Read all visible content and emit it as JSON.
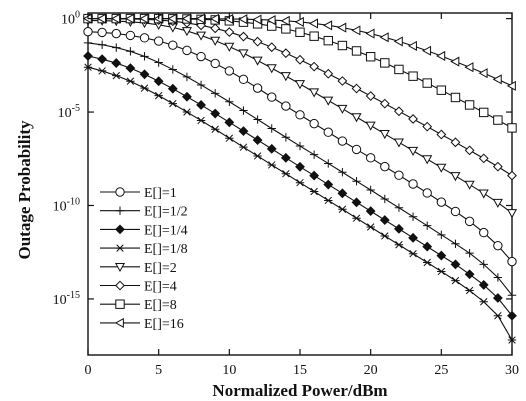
{
  "chart_data": {
    "type": "line",
    "title": "",
    "xlabel": "Normalized Power/dBm",
    "ylabel": "Outage Probability",
    "xlim": [
      0,
      30
    ],
    "ylim_log10": [
      -18,
      0.3
    ],
    "y_scale": "log",
    "x_ticks": [
      0,
      5,
      10,
      15,
      20,
      25,
      30
    ],
    "y_ticks": [
      {
        "exp": 0,
        "base": "10",
        "power": "0"
      },
      {
        "exp": -5,
        "base": "10",
        "power": "-5"
      },
      {
        "exp": -10,
        "base": "10",
        "power": "-10"
      },
      {
        "exp": -15,
        "base": "10",
        "power": "-15"
      }
    ],
    "legend_position": "bottom-left",
    "grid": false,
    "x": [
      0,
      1,
      2,
      3,
      4,
      5,
      6,
      7,
      8,
      9,
      10,
      11,
      12,
      13,
      14,
      15,
      16,
      17,
      18,
      19,
      20,
      21,
      22,
      23,
      24,
      25,
      26,
      27,
      28,
      29,
      30
    ],
    "series": [
      {
        "name": "E[]=1",
        "marker": "circle",
        "log10_y": [
          -0.7,
          -0.74,
          -0.8,
          -0.9,
          -1.03,
          -1.2,
          -1.42,
          -1.7,
          -2.03,
          -2.4,
          -2.8,
          -3.25,
          -3.72,
          -4.2,
          -4.68,
          -5.15,
          -5.62,
          -6.08,
          -6.55,
          -7.0,
          -7.45,
          -7.92,
          -8.38,
          -8.85,
          -9.33,
          -9.82,
          -10.32,
          -10.85,
          -11.45,
          -12.15,
          -13.0
        ]
      },
      {
        "name": "E[]=1/2",
        "marker": "plus",
        "log10_y": [
          -1.3,
          -1.4,
          -1.55,
          -1.75,
          -2.02,
          -2.35,
          -2.72,
          -3.12,
          -3.55,
          -4.0,
          -4.45,
          -4.92,
          -5.4,
          -5.88,
          -6.35,
          -6.82,
          -7.28,
          -7.75,
          -8.22,
          -8.7,
          -9.17,
          -9.65,
          -10.12,
          -10.6,
          -11.08,
          -11.57,
          -12.05,
          -12.55,
          -13.15,
          -13.85,
          -14.8
        ]
      },
      {
        "name": "E[]=1/4",
        "marker": "diamond-filled",
        "log10_y": [
          -2.0,
          -2.17,
          -2.38,
          -2.65,
          -2.98,
          -3.35,
          -3.75,
          -4.18,
          -4.62,
          -5.08,
          -5.55,
          -6.02,
          -6.5,
          -6.97,
          -7.45,
          -7.93,
          -8.4,
          -8.88,
          -9.35,
          -9.83,
          -10.3,
          -10.78,
          -11.25,
          -11.73,
          -12.2,
          -12.68,
          -13.15,
          -13.68,
          -14.25,
          -14.95,
          -15.9
        ]
      },
      {
        "name": "E[]=1/8",
        "marker": "star",
        "log10_y": [
          -2.6,
          -2.8,
          -3.05,
          -3.35,
          -3.72,
          -4.12,
          -4.55,
          -5.0,
          -5.45,
          -5.92,
          -6.4,
          -6.88,
          -7.35,
          -7.83,
          -8.3,
          -8.78,
          -9.25,
          -9.73,
          -10.2,
          -10.68,
          -11.15,
          -11.63,
          -12.1,
          -12.58,
          -13.05,
          -13.53,
          -14.02,
          -14.55,
          -15.15,
          -15.9,
          -17.2
        ]
      },
      {
        "name": "E[]=2",
        "marker": "triangle-down",
        "log10_y": [
          -0.1,
          -0.11,
          -0.13,
          -0.17,
          -0.23,
          -0.33,
          -0.47,
          -0.66,
          -0.9,
          -1.18,
          -1.5,
          -1.85,
          -2.24,
          -2.65,
          -3.07,
          -3.5,
          -3.94,
          -4.38,
          -4.82,
          -5.27,
          -5.72,
          -6.17,
          -6.62,
          -7.07,
          -7.52,
          -7.97,
          -8.42,
          -8.88,
          -9.35,
          -9.85,
          -10.4
        ]
      },
      {
        "name": "E[]=4",
        "marker": "diamond",
        "log10_y": [
          0.0,
          0.0,
          -0.01,
          -0.02,
          -0.04,
          -0.08,
          -0.14,
          -0.23,
          -0.36,
          -0.52,
          -0.72,
          -0.96,
          -1.23,
          -1.53,
          -1.85,
          -2.2,
          -2.57,
          -2.95,
          -3.34,
          -3.74,
          -4.14,
          -4.55,
          -4.96,
          -5.37,
          -5.78,
          -6.2,
          -6.62,
          -7.05,
          -7.48,
          -7.92,
          -8.4
        ]
      },
      {
        "name": "E[]=8",
        "marker": "square",
        "log10_y": [
          0.0,
          0.0,
          0.0,
          0.0,
          0.0,
          0.0,
          -0.01,
          -0.02,
          -0.04,
          -0.07,
          -0.12,
          -0.19,
          -0.28,
          -0.4,
          -0.55,
          -0.73,
          -0.94,
          -1.18,
          -1.44,
          -1.73,
          -2.04,
          -2.37,
          -2.72,
          -3.08,
          -3.45,
          -3.83,
          -4.22,
          -4.62,
          -5.02,
          -5.43,
          -5.85
        ]
      },
      {
        "name": "E[]=16",
        "marker": "triangle-left",
        "log10_y": [
          0.0,
          0.0,
          0.0,
          0.0,
          0.0,
          0.0,
          0.0,
          0.0,
          0.0,
          -0.01,
          -0.02,
          -0.03,
          -0.05,
          -0.08,
          -0.12,
          -0.18,
          -0.26,
          -0.36,
          -0.48,
          -0.63,
          -0.8,
          -1.0,
          -1.22,
          -1.46,
          -1.72,
          -2.0,
          -2.3,
          -2.6,
          -2.92,
          -3.25,
          -3.6
        ]
      }
    ]
  }
}
